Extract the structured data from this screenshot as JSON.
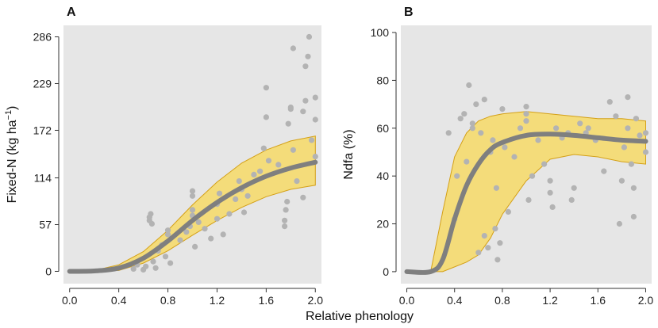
{
  "figure": {
    "shared_xlabel": "Relative phenology"
  },
  "colors": {
    "panel_bg": "#e6e6e6",
    "band_fill": "#f4dc7a",
    "band_stroke": "#d4a017",
    "fit_line": "#7f7f7f",
    "points": "#b3b3b3"
  },
  "chart_data": [
    {
      "panel_label": "A",
      "type": "scatter",
      "title": "",
      "xlabel": "Relative phenology",
      "ylabel": "Fixed-N (kg ha⁻¹)",
      "ylabel_main": "Fixed-N (kg ha",
      "ylabel_sup": "−1",
      "ylabel_close": ")",
      "xlim": [
        -0.05,
        2.05
      ],
      "ylim": [
        -15,
        300
      ],
      "xticks": [
        0.0,
        0.4,
        0.8,
        1.2,
        1.6,
        2.0
      ],
      "xtick_labels": [
        "0.0",
        "0.4",
        "0.8",
        "1.2",
        "1.6",
        "2.0"
      ],
      "yticks": [
        0,
        57,
        114,
        172,
        229,
        286
      ],
      "ytick_labels": [
        "0",
        "57",
        "114",
        "172",
        "229",
        "286"
      ],
      "grid": false,
      "fit": {
        "x": [
          0.0,
          0.2,
          0.4,
          0.6,
          0.8,
          1.0,
          1.2,
          1.4,
          1.6,
          1.8,
          2.0
        ],
        "y": [
          0,
          0.5,
          4,
          16,
          37,
          62,
          84,
          102,
          116,
          126,
          133
        ],
        "lower": [
          0,
          0,
          1,
          10,
          25,
          44,
          62,
          78,
          91,
          100,
          105
        ],
        "upper": [
          0,
          1,
          8,
          24,
          50,
          81,
          109,
          132,
          148,
          159,
          165
        ]
      },
      "points": [
        {
          "x": 0.52,
          "y": 3
        },
        {
          "x": 0.55,
          "y": 8
        },
        {
          "x": 0.6,
          "y": 2
        },
        {
          "x": 0.62,
          "y": 6
        },
        {
          "x": 0.65,
          "y": 62
        },
        {
          "x": 0.65,
          "y": 66
        },
        {
          "x": 0.66,
          "y": 70
        },
        {
          "x": 0.67,
          "y": 58
        },
        {
          "x": 0.68,
          "y": 12
        },
        {
          "x": 0.7,
          "y": 4
        },
        {
          "x": 0.72,
          "y": 25
        },
        {
          "x": 0.75,
          "y": 32
        },
        {
          "x": 0.78,
          "y": 18
        },
        {
          "x": 0.8,
          "y": 45
        },
        {
          "x": 0.8,
          "y": 50
        },
        {
          "x": 0.82,
          "y": 10
        },
        {
          "x": 0.9,
          "y": 38
        },
        {
          "x": 0.95,
          "y": 48
        },
        {
          "x": 0.98,
          "y": 55
        },
        {
          "x": 1.0,
          "y": 68
        },
        {
          "x": 1.0,
          "y": 75
        },
        {
          "x": 1.0,
          "y": 92
        },
        {
          "x": 1.0,
          "y": 98
        },
        {
          "x": 1.02,
          "y": 30
        },
        {
          "x": 1.05,
          "y": 60
        },
        {
          "x": 1.1,
          "y": 52
        },
        {
          "x": 1.15,
          "y": 40
        },
        {
          "x": 1.2,
          "y": 64
        },
        {
          "x": 1.2,
          "y": 82
        },
        {
          "x": 1.22,
          "y": 95
        },
        {
          "x": 1.25,
          "y": 45
        },
        {
          "x": 1.3,
          "y": 70
        },
        {
          "x": 1.35,
          "y": 88
        },
        {
          "x": 1.38,
          "y": 110
        },
        {
          "x": 1.4,
          "y": 100
        },
        {
          "x": 1.42,
          "y": 72
        },
        {
          "x": 1.45,
          "y": 92
        },
        {
          "x": 1.5,
          "y": 118
        },
        {
          "x": 1.55,
          "y": 122
        },
        {
          "x": 1.58,
          "y": 150
        },
        {
          "x": 1.6,
          "y": 188
        },
        {
          "x": 1.6,
          "y": 224
        },
        {
          "x": 1.62,
          "y": 135
        },
        {
          "x": 1.7,
          "y": 130
        },
        {
          "x": 1.75,
          "y": 55
        },
        {
          "x": 1.75,
          "y": 62
        },
        {
          "x": 1.76,
          "y": 75
        },
        {
          "x": 1.77,
          "y": 85
        },
        {
          "x": 1.78,
          "y": 180
        },
        {
          "x": 1.8,
          "y": 198
        },
        {
          "x": 1.8,
          "y": 200
        },
        {
          "x": 1.82,
          "y": 148
        },
        {
          "x": 1.82,
          "y": 272
        },
        {
          "x": 1.85,
          "y": 110
        },
        {
          "x": 1.9,
          "y": 90
        },
        {
          "x": 1.9,
          "y": 195
        },
        {
          "x": 1.92,
          "y": 208
        },
        {
          "x": 1.92,
          "y": 250
        },
        {
          "x": 1.94,
          "y": 262
        },
        {
          "x": 1.95,
          "y": 286
        },
        {
          "x": 1.97,
          "y": 160
        },
        {
          "x": 2.0,
          "y": 140
        },
        {
          "x": 2.0,
          "y": 185
        },
        {
          "x": 2.0,
          "y": 212
        }
      ]
    },
    {
      "panel_label": "B",
      "type": "scatter",
      "title": "",
      "xlabel": "Relative phenology",
      "ylabel": "Ndfa (%)",
      "ylabel_main": "Ndfa (%)",
      "ylabel_sup": "",
      "ylabel_close": "",
      "xlim": [
        -0.05,
        2.05
      ],
      "ylim": [
        -5,
        103
      ],
      "xticks": [
        0.0,
        0.4,
        0.8,
        1.2,
        1.6,
        2.0
      ],
      "xtick_labels": [
        "0.0",
        "0.4",
        "0.8",
        "1.2",
        "1.6",
        "2.0"
      ],
      "yticks": [
        0,
        20,
        40,
        60,
        80,
        100
      ],
      "ytick_labels": [
        "0",
        "20",
        "40",
        "60",
        "80",
        "100"
      ],
      "grid": false,
      "fit": {
        "x": [
          0.0,
          0.2,
          0.3,
          0.4,
          0.5,
          0.6,
          0.7,
          0.8,
          1.0,
          1.2,
          1.4,
          1.6,
          1.8,
          2.0
        ],
        "y": [
          0,
          0,
          5,
          22,
          36,
          45,
          51,
          54,
          57,
          57.5,
          57,
          56,
          55,
          54.5
        ],
        "lower": [
          0,
          0,
          0,
          2,
          4,
          7,
          14,
          24,
          38,
          47,
          49,
          48,
          46,
          45
        ],
        "upper": [
          0,
          0,
          25,
          48,
          58,
          63,
          65,
          66,
          67,
          66,
          65,
          64,
          64,
          63
        ]
      },
      "points": [
        {
          "x": 0.35,
          "y": 58
        },
        {
          "x": 0.4,
          "y": 22
        },
        {
          "x": 0.42,
          "y": 40
        },
        {
          "x": 0.45,
          "y": 64
        },
        {
          "x": 0.48,
          "y": 66
        },
        {
          "x": 0.5,
          "y": 46
        },
        {
          "x": 0.52,
          "y": 78
        },
        {
          "x": 0.55,
          "y": 60
        },
        {
          "x": 0.55,
          "y": 62
        },
        {
          "x": 0.58,
          "y": 70
        },
        {
          "x": 0.6,
          "y": 8
        },
        {
          "x": 0.62,
          "y": 58
        },
        {
          "x": 0.65,
          "y": 72
        },
        {
          "x": 0.65,
          "y": 15
        },
        {
          "x": 0.68,
          "y": 10
        },
        {
          "x": 0.7,
          "y": 50
        },
        {
          "x": 0.72,
          "y": 55
        },
        {
          "x": 0.74,
          "y": 18
        },
        {
          "x": 0.75,
          "y": 35
        },
        {
          "x": 0.76,
          "y": 5
        },
        {
          "x": 0.78,
          "y": 12
        },
        {
          "x": 0.8,
          "y": 68
        },
        {
          "x": 0.82,
          "y": 52
        },
        {
          "x": 0.85,
          "y": 25
        },
        {
          "x": 0.9,
          "y": 48
        },
        {
          "x": 0.95,
          "y": 60
        },
        {
          "x": 1.0,
          "y": 63
        },
        {
          "x": 1.0,
          "y": 66
        },
        {
          "x": 1.0,
          "y": 69
        },
        {
          "x": 1.02,
          "y": 30
        },
        {
          "x": 1.05,
          "y": 40
        },
        {
          "x": 1.1,
          "y": 55
        },
        {
          "x": 1.15,
          "y": 45
        },
        {
          "x": 1.2,
          "y": 33
        },
        {
          "x": 1.2,
          "y": 38
        },
        {
          "x": 1.22,
          "y": 27
        },
        {
          "x": 1.25,
          "y": 60
        },
        {
          "x": 1.3,
          "y": 56
        },
        {
          "x": 1.35,
          "y": 58
        },
        {
          "x": 1.38,
          "y": 30
        },
        {
          "x": 1.4,
          "y": 35
        },
        {
          "x": 1.45,
          "y": 62
        },
        {
          "x": 1.5,
          "y": 58
        },
        {
          "x": 1.52,
          "y": 60
        },
        {
          "x": 1.58,
          "y": 55
        },
        {
          "x": 1.65,
          "y": 42
        },
        {
          "x": 1.7,
          "y": 71
        },
        {
          "x": 1.75,
          "y": 65
        },
        {
          "x": 1.78,
          "y": 20
        },
        {
          "x": 1.8,
          "y": 38
        },
        {
          "x": 1.82,
          "y": 52
        },
        {
          "x": 1.85,
          "y": 60
        },
        {
          "x": 1.85,
          "y": 73
        },
        {
          "x": 1.88,
          "y": 45
        },
        {
          "x": 1.9,
          "y": 35
        },
        {
          "x": 1.9,
          "y": 23
        },
        {
          "x": 1.92,
          "y": 64
        },
        {
          "x": 1.95,
          "y": 57
        },
        {
          "x": 2.0,
          "y": 50
        },
        {
          "x": 2.0,
          "y": 58
        }
      ]
    }
  ]
}
